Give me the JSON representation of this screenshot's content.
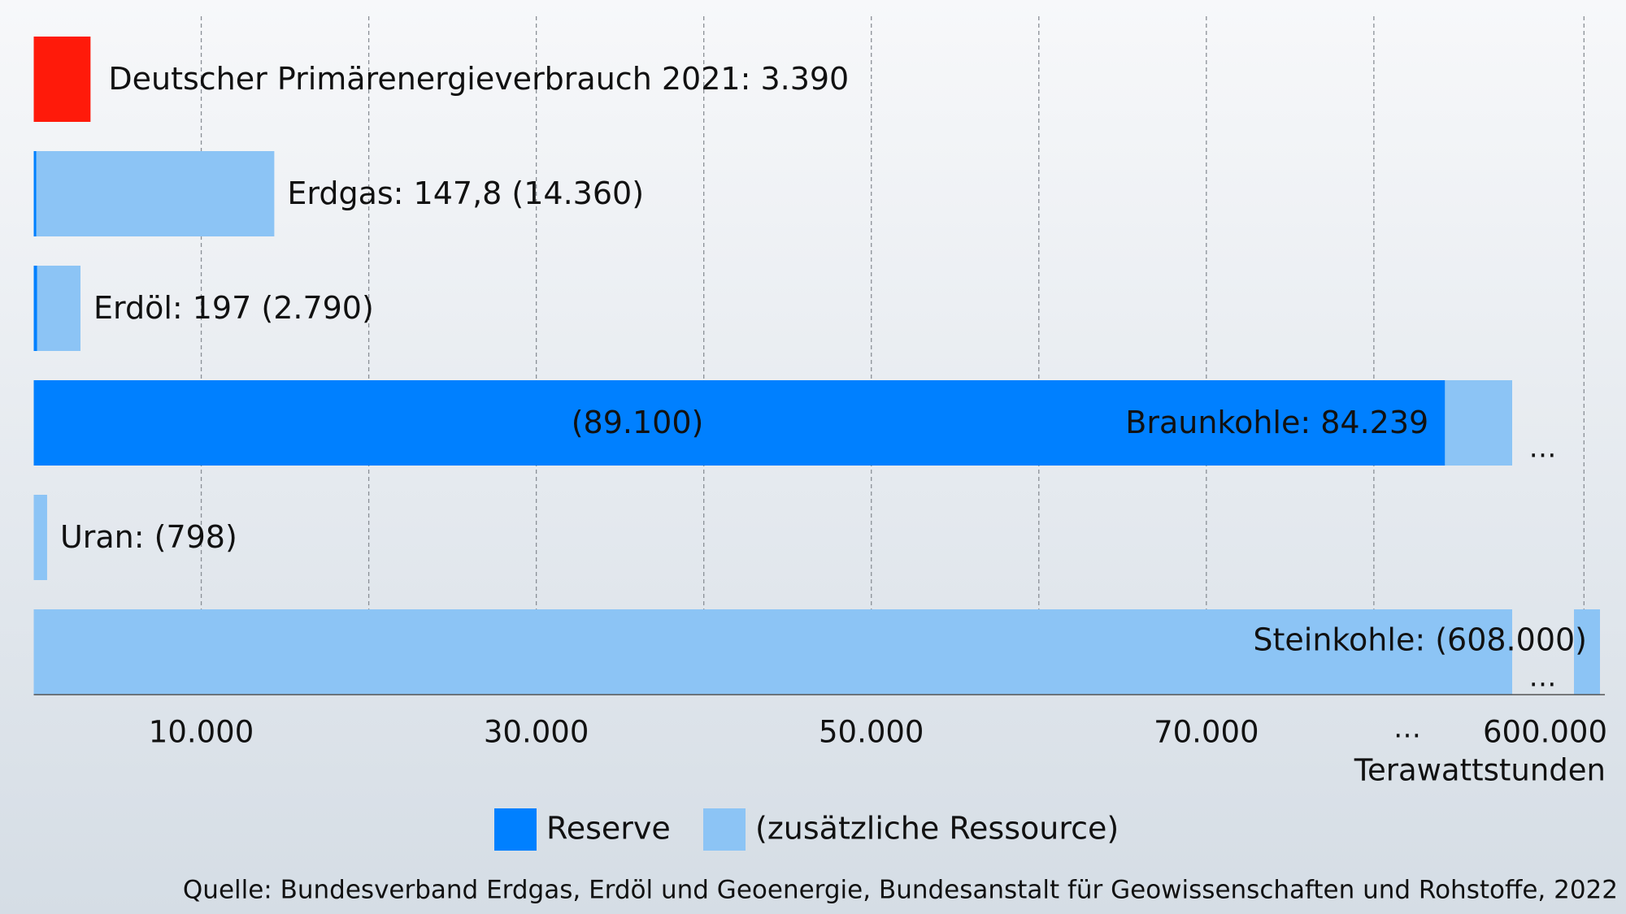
{
  "chart_data": {
    "type": "bar",
    "orientation": "horizontal",
    "reference": {
      "label": "Deutscher Primärenergieverbrauch 2021: 3.390",
      "value": 3390,
      "color": "#ff1a0a"
    },
    "rows": [
      {
        "labels": [
          "Erdgas: 147,8 (14.360)"
        ]
      },
      {
        "labels": [
          "Erdöl: 197 (2.790)"
        ]
      },
      {
        "labels": [
          "Braunkohle: 84.239",
          "(89.100)"
        ]
      },
      {
        "labels": [
          "Uran: (798)"
        ]
      },
      {
        "labels": [
          "Steinkohle: (608.000)"
        ]
      }
    ],
    "series": [
      {
        "name": "(zusätzliche Ressource)",
        "color": "#8cc4f5",
        "values": [
          14360,
          2790,
          89100,
          798,
          608000
        ]
      },
      {
        "name": "Reserve",
        "color": "#0080ff",
        "values": [
          147.8,
          197,
          84239,
          null,
          null
        ]
      }
    ],
    "xlim": [
      0,
      608000
    ],
    "xbreak": [
      88500,
      595000
    ],
    "break_label": "…",
    "xticks": [
      {
        "value": 10000,
        "label": "10.000"
      },
      {
        "value": 30000,
        "label": "30.000"
      },
      {
        "value": 50000,
        "label": "50.000"
      },
      {
        "value": 70000,
        "label": "70.000"
      },
      {
        "value": 600000,
        "label": "600.000"
      }
    ],
    "xgrid": [
      10000,
      20000,
      30000,
      40000,
      50000,
      60000,
      70000,
      80000,
      600000
    ],
    "x_label": "Terawattstunden",
    "source": "Quelle: Bundesverband Erdgas, Erdöl und Geoenergie, Bundesanstalt für Geowissenschaften und Rohstoffe, 2022"
  }
}
